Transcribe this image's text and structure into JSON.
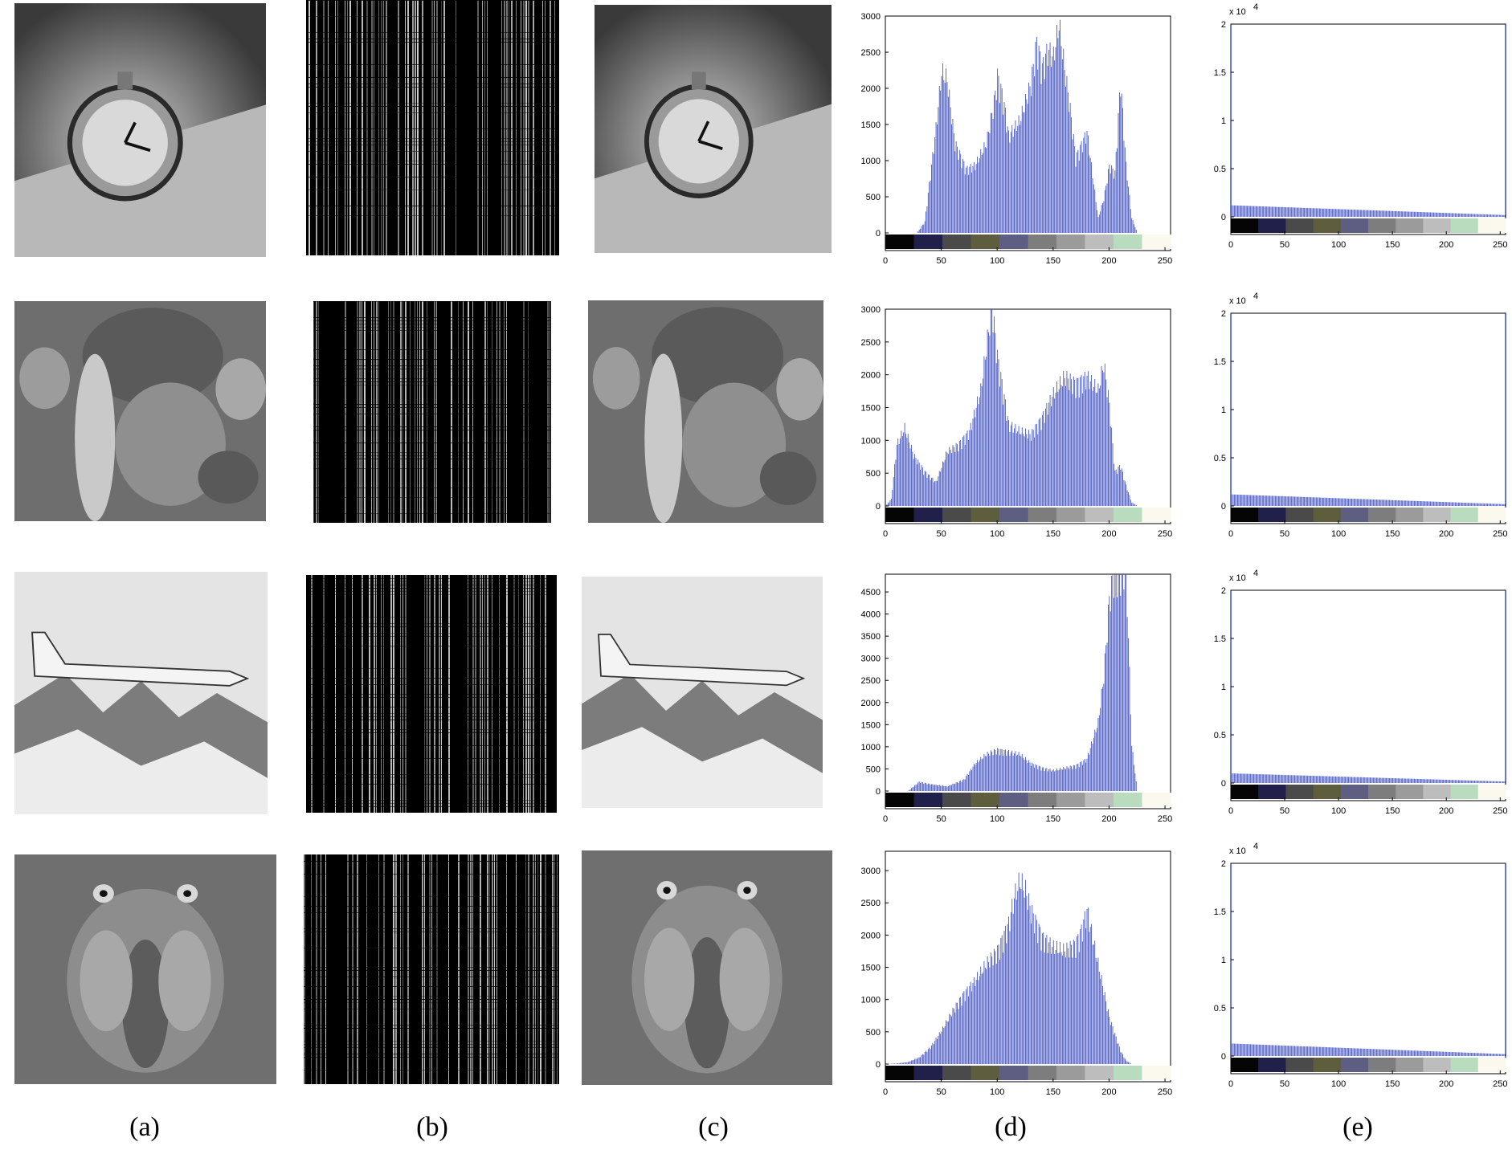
{
  "captions": [
    "(a)",
    "(b)",
    "(c)",
    "(d)",
    "(e)"
  ],
  "colorbar": [
    "#050505",
    "#20204a",
    "#4a4a4a",
    "#5e5d3e",
    "#5e5d82",
    "#7d7d7d",
    "#9b9b9b",
    "#bdbdbd",
    "#b9dcbf",
    "#fbf9ee"
  ],
  "bar_color": "#3f4fbf",
  "chart_data": [
    {
      "type": "bar",
      "panel": "d",
      "row": 1,
      "title": "",
      "xticks": [
        0,
        50,
        100,
        150,
        200,
        250
      ],
      "xlim": [
        0,
        255
      ],
      "ylim": [
        0,
        3000
      ],
      "yticks": [
        0,
        500,
        1000,
        1500,
        2000,
        2500,
        3000
      ],
      "profile": [
        [
          0,
          0
        ],
        [
          28,
          0
        ],
        [
          35,
          150
        ],
        [
          45,
          1400
        ],
        [
          50,
          2150
        ],
        [
          55,
          2050
        ],
        [
          62,
          1200
        ],
        [
          72,
          850
        ],
        [
          80,
          900
        ],
        [
          90,
          1200
        ],
        [
          97,
          1750
        ],
        [
          100,
          2100
        ],
        [
          105,
          1800
        ],
        [
          110,
          1300
        ],
        [
          120,
          1500
        ],
        [
          130,
          2000
        ],
        [
          135,
          2550
        ],
        [
          140,
          2200
        ],
        [
          145,
          2450
        ],
        [
          150,
          2350
        ],
        [
          155,
          2800
        ],
        [
          160,
          2200
        ],
        [
          165,
          1650
        ],
        [
          170,
          1000
        ],
        [
          180,
          1350
        ],
        [
          190,
          200
        ],
        [
          195,
          450
        ],
        [
          200,
          900
        ],
        [
          205,
          800
        ],
        [
          210,
          2050
        ],
        [
          215,
          900
        ],
        [
          220,
          200
        ],
        [
          225,
          0
        ],
        [
          255,
          0
        ]
      ]
    },
    {
      "type": "bar",
      "panel": "d",
      "row": 2,
      "title": "",
      "xticks": [
        0,
        50,
        100,
        150,
        200,
        250
      ],
      "xlim": [
        0,
        255
      ],
      "ylim": [
        0,
        3000
      ],
      "yticks": [
        0,
        500,
        1000,
        1500,
        2000,
        2500,
        3000
      ],
      "profile": [
        [
          0,
          0
        ],
        [
          5,
          100
        ],
        [
          10,
          900
        ],
        [
          17,
          1150
        ],
        [
          25,
          750
        ],
        [
          35,
          500
        ],
        [
          45,
          350
        ],
        [
          55,
          800
        ],
        [
          65,
          900
        ],
        [
          75,
          1100
        ],
        [
          85,
          1700
        ],
        [
          95,
          2950
        ],
        [
          100,
          2200
        ],
        [
          110,
          1200
        ],
        [
          120,
          1100
        ],
        [
          130,
          1050
        ],
        [
          140,
          1300
        ],
        [
          150,
          1650
        ],
        [
          160,
          1900
        ],
        [
          170,
          1800
        ],
        [
          180,
          1900
        ],
        [
          190,
          1700
        ],
        [
          195,
          2100
        ],
        [
          200,
          1500
        ],
        [
          205,
          500
        ],
        [
          210,
          600
        ],
        [
          215,
          300
        ],
        [
          220,
          50
        ],
        [
          225,
          0
        ],
        [
          255,
          0
        ]
      ]
    },
    {
      "type": "bar",
      "panel": "d",
      "row": 3,
      "title": "",
      "xticks": [
        0,
        50,
        100,
        150,
        200,
        250
      ],
      "xlim": [
        0,
        255
      ],
      "ylim": [
        0,
        4900
      ],
      "yticks": [
        0,
        500,
        1000,
        1500,
        2000,
        2500,
        3000,
        3500,
        4000,
        4500
      ],
      "profile": [
        [
          0,
          0
        ],
        [
          20,
          0
        ],
        [
          30,
          200
        ],
        [
          40,
          150
        ],
        [
          55,
          100
        ],
        [
          70,
          250
        ],
        [
          80,
          600
        ],
        [
          90,
          800
        ],
        [
          100,
          900
        ],
        [
          110,
          850
        ],
        [
          120,
          800
        ],
        [
          130,
          600
        ],
        [
          140,
          500
        ],
        [
          150,
          450
        ],
        [
          160,
          500
        ],
        [
          170,
          550
        ],
        [
          180,
          700
        ],
        [
          190,
          1500
        ],
        [
          195,
          2500
        ],
        [
          200,
          4200
        ],
        [
          205,
          4900
        ],
        [
          210,
          4800
        ],
        [
          215,
          4900
        ],
        [
          220,
          1000
        ],
        [
          225,
          0
        ],
        [
          255,
          0
        ]
      ]
    },
    {
      "type": "bar",
      "panel": "d",
      "row": 4,
      "title": "",
      "xticks": [
        0,
        50,
        100,
        150,
        200,
        250
      ],
      "xlim": [
        0,
        255
      ],
      "ylim": [
        0,
        3300
      ],
      "yticks": [
        0,
        500,
        1000,
        1500,
        2000,
        2500,
        3000
      ],
      "profile": [
        [
          0,
          0
        ],
        [
          10,
          10
        ],
        [
          20,
          30
        ],
        [
          30,
          100
        ],
        [
          40,
          250
        ],
        [
          50,
          500
        ],
        [
          60,
          800
        ],
        [
          70,
          1050
        ],
        [
          80,
          1250
        ],
        [
          90,
          1500
        ],
        [
          100,
          1700
        ],
        [
          110,
          2100
        ],
        [
          115,
          2500
        ],
        [
          120,
          2750
        ],
        [
          125,
          2600
        ],
        [
          130,
          2300
        ],
        [
          140,
          1900
        ],
        [
          150,
          1750
        ],
        [
          160,
          1700
        ],
        [
          170,
          1800
        ],
        [
          175,
          2000
        ],
        [
          180,
          2300
        ],
        [
          185,
          1900
        ],
        [
          190,
          1500
        ],
        [
          200,
          700
        ],
        [
          210,
          200
        ],
        [
          215,
          50
        ],
        [
          220,
          0
        ],
        [
          255,
          0
        ]
      ]
    },
    {
      "type": "bar",
      "panel": "e",
      "row": 1,
      "title": "",
      "xticks": [
        0,
        50,
        100,
        150,
        200,
        250
      ],
      "xlim": [
        0,
        255
      ],
      "ylim": [
        0,
        20000
      ],
      "yticks": [
        0,
        0.5,
        1,
        1.5,
        2
      ],
      "ytick_scale": "x 10",
      "ytick_exponent": "4",
      "level": 1200,
      "flat_level": 256
    },
    {
      "type": "bar",
      "panel": "e",
      "row": 2,
      "title": "",
      "xticks": [
        0,
        50,
        100,
        150,
        200,
        250
      ],
      "xlim": [
        0,
        255
      ],
      "ylim": [
        0,
        20000
      ],
      "yticks": [
        0,
        0.5,
        1,
        1.5,
        2
      ],
      "ytick_scale": "x 10",
      "ytick_exponent": "4",
      "level": 1200,
      "flat_level": 256
    },
    {
      "type": "bar",
      "panel": "e",
      "row": 3,
      "title": "",
      "xticks": [
        0,
        50,
        100,
        150,
        200,
        250
      ],
      "xlim": [
        0,
        255
      ],
      "ylim": [
        0,
        20000
      ],
      "yticks": [
        0,
        0.5,
        1,
        1.5,
        2
      ],
      "ytick_scale": "x 10",
      "ytick_exponent": "4",
      "level": 1000,
      "flat_level": 256
    },
    {
      "type": "bar",
      "panel": "e",
      "row": 4,
      "title": "",
      "xticks": [
        0,
        50,
        100,
        150,
        200,
        250
      ],
      "xlim": [
        0,
        255
      ],
      "ylim": [
        0,
        20000
      ],
      "yticks": [
        0,
        0.5,
        1,
        1.5,
        2
      ],
      "ytick_scale": "x 10",
      "ytick_exponent": "4",
      "level": 1300,
      "flat_level": 256
    }
  ]
}
